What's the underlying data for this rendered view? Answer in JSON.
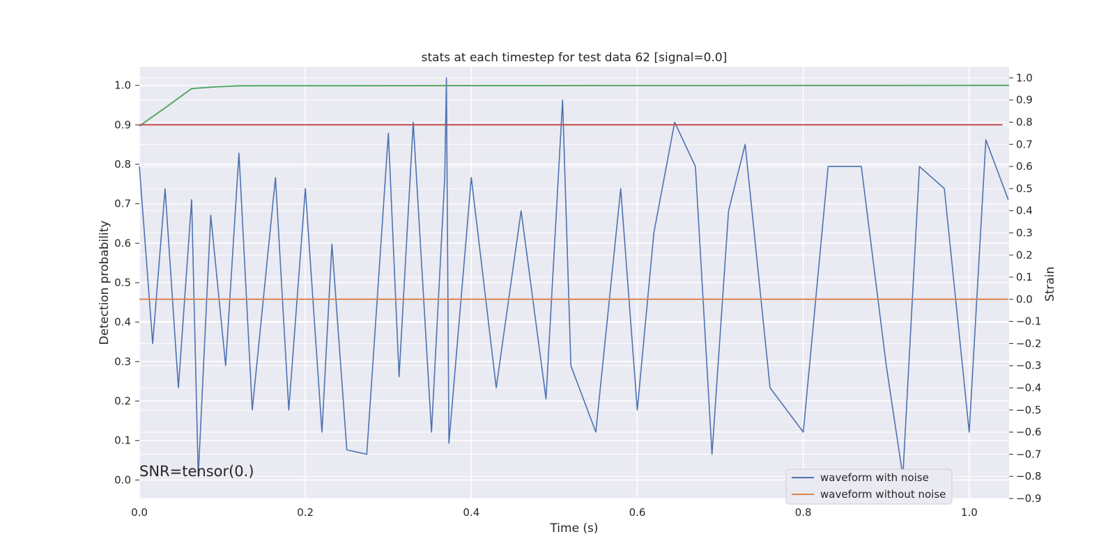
{
  "chart_data": {
    "type": "line",
    "title": "stats at each timestep for test data 62 [signal=0.0]",
    "xlabel": "Time (s)",
    "ylabel_left": "Detection probability",
    "ylabel_right": "Strain",
    "annotation": "SNR=tensor(0.)",
    "xlim": [
      0.0,
      1.048
    ],
    "ylim_left": [
      -0.047,
      1.047
    ],
    "ylim_right": [
      -0.9,
      1.05
    ],
    "x_ticks": [
      0.0,
      0.2,
      0.4,
      0.6,
      0.8,
      1.0
    ],
    "x_tick_labels": [
      "0.0",
      "0.2",
      "0.4",
      "0.6",
      "0.8",
      "1.0"
    ],
    "y_left_ticks": [
      0.0,
      0.1,
      0.2,
      0.3,
      0.4,
      0.5,
      0.6,
      0.7,
      0.8,
      0.9,
      1.0
    ],
    "y_left_tick_labels": [
      "0.0",
      "0.1",
      "0.2",
      "0.3",
      "0.4",
      "0.5",
      "0.6",
      "0.7",
      "0.8",
      "0.9",
      "1.0"
    ],
    "y_right_ticks": [
      -0.9,
      -0.8,
      -0.7,
      -0.6,
      -0.5,
      -0.4,
      -0.3,
      -0.2,
      -0.1,
      0.0,
      0.1,
      0.2,
      0.3,
      0.4,
      0.5,
      0.6,
      0.7,
      0.8,
      0.9,
      1.0
    ],
    "y_right_tick_labels": [
      "−0.9",
      "−0.8",
      "−0.7",
      "−0.6",
      "−0.5",
      "−0.4",
      "−0.3",
      "−0.2",
      "−0.1",
      "0.0",
      "0.1",
      "0.2",
      "0.3",
      "0.4",
      "0.5",
      "0.6",
      "0.7",
      "0.8",
      "0.9",
      "1.0"
    ],
    "grid": true,
    "legend_position": "bottom-right",
    "series": [
      {
        "name": "waveform with noise",
        "axis": "right",
        "color": "#4c72b0",
        "x": [
          0.0,
          0.016,
          0.031,
          0.047,
          0.063,
          0.071,
          0.086,
          0.104,
          0.12,
          0.136,
          0.164,
          0.18,
          0.2,
          0.22,
          0.232,
          0.25,
          0.274,
          0.3,
          0.313,
          0.33,
          0.352,
          0.368,
          0.37,
          0.373,
          0.4,
          0.43,
          0.46,
          0.49,
          0.51,
          0.52,
          0.55,
          0.58,
          0.6,
          0.62,
          0.645,
          0.67,
          0.69,
          0.71,
          0.73,
          0.76,
          0.8,
          0.83,
          0.87,
          0.9,
          0.92,
          0.94,
          0.97,
          1.0,
          1.02,
          1.047
        ],
        "y": [
          0.6,
          -0.2,
          0.5,
          -0.4,
          0.45,
          -0.8,
          0.38,
          -0.3,
          0.66,
          -0.5,
          0.55,
          -0.5,
          0.5,
          -0.6,
          0.25,
          -0.68,
          -0.7,
          0.75,
          -0.35,
          0.8,
          -0.6,
          0.55,
          1.0,
          -0.65,
          0.55,
          -0.4,
          0.4,
          -0.45,
          0.9,
          -0.3,
          -0.6,
          0.5,
          -0.5,
          0.3,
          0.8,
          0.6,
          -0.7,
          0.4,
          0.7,
          -0.4,
          -0.6,
          0.6,
          0.6,
          -0.3,
          -0.8,
          0.6,
          0.5,
          -0.6,
          0.72,
          0.45
        ]
      },
      {
        "name": "waveform without noise",
        "axis": "right",
        "color": "#dd8452",
        "x": [
          0.0,
          1.047
        ],
        "y": [
          0.0,
          0.0
        ]
      },
      {
        "axis": "left",
        "color": "#55a868",
        "x": [
          0.0,
          0.031,
          0.063,
          0.09,
          0.12,
          1.048
        ],
        "y": [
          0.897,
          0.943,
          0.992,
          0.996,
          0.999,
          1.0
        ]
      },
      {
        "axis": "left",
        "color": "#c44e52",
        "x": [
          0.0,
          1.04
        ],
        "y": [
          0.9,
          0.9
        ]
      }
    ]
  }
}
